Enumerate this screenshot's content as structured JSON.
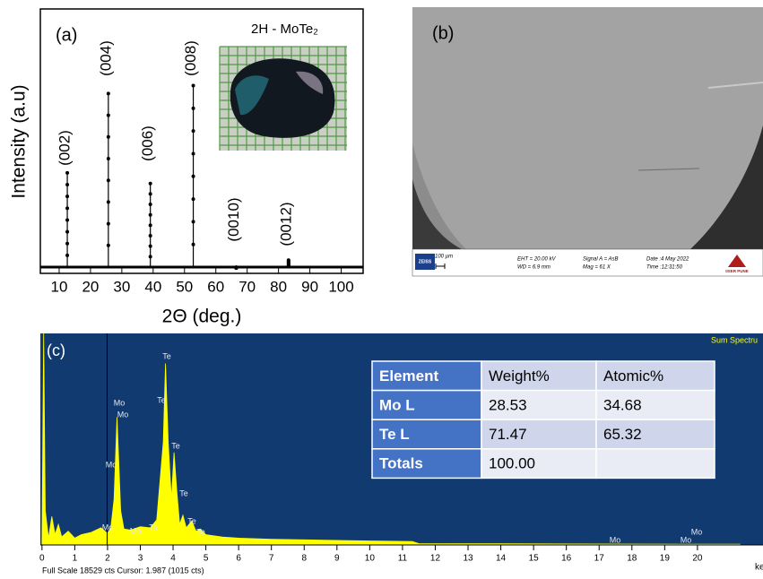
{
  "chart_data": [
    {
      "type": "stem",
      "panel_label": "(a)",
      "title": "2H - MoTe₂",
      "y_label": "Intensity (a.u)",
      "x_label": "2Θ (deg.)",
      "x": [
        12.6,
        25.7,
        39.1,
        52.8,
        66.5,
        83.2
      ],
      "values": [
        38,
        68,
        34,
        71,
        2,
        5
      ],
      "peak_labels": [
        "(002)",
        "(004)",
        "(006)",
        "(008)",
        "(0010)",
        "(0012)"
      ],
      "color": "#000000",
      "xlim": [
        4,
        107
      ],
      "ylim": [
        0,
        100
      ],
      "xticks": [
        10,
        20,
        30,
        40,
        50,
        60,
        70,
        80,
        90,
        100
      ]
    },
    {
      "type": "area",
      "panel_label": "(c)",
      "legend": "Sum Spectru",
      "x_unit": "ke",
      "footer": "Full Scale 18529 cts Cursor: 1.987 (1015 cts)",
      "cursor_x": 1.987,
      "x": [
        0,
        0.05,
        0.1,
        0.2,
        0.3,
        0.4,
        0.5,
        0.6,
        0.8,
        1.0,
        1.2,
        1.5,
        1.8,
        2.0,
        2.1,
        2.2,
        2.29,
        2.4,
        2.5,
        2.7,
        3.0,
        3.3,
        3.5,
        3.7,
        3.77,
        3.85,
        3.95,
        4.03,
        4.12,
        4.2,
        4.3,
        4.4,
        4.57,
        4.7,
        4.83,
        5.0,
        5.5,
        6,
        7,
        8,
        10,
        11.3,
        11.5,
        14,
        20,
        21.3
      ],
      "values": [
        0,
        18529,
        3000,
        600,
        2500,
        900,
        1800,
        700,
        1200,
        600,
        900,
        1100,
        1500,
        1015,
        1500,
        4000,
        11200,
        3000,
        1400,
        1300,
        1600,
        1500,
        2200,
        9000,
        15900,
        9000,
        4000,
        8100,
        4500,
        1800,
        2600,
        1500,
        2100,
        1200,
        1400,
        900,
        700,
        600,
        500,
        450,
        350,
        300,
        120,
        100,
        60,
        60
      ],
      "peak_labels": [
        "Te",
        "Te",
        "Mo",
        "Mo",
        "Te",
        "Mo",
        "Te",
        "Te",
        "Te",
        "Te",
        "Mo",
        "Mo",
        "Mo",
        "Mo",
        "Mo"
      ],
      "color": "#ffff00",
      "background": "#113a70",
      "xlim": [
        -0.05,
        22.0
      ],
      "ylim": [
        0,
        18529
      ],
      "xticks": [
        0,
        1,
        2,
        3,
        4,
        5,
        6,
        7,
        8,
        9,
        10,
        11,
        12,
        13,
        14,
        15,
        16,
        17,
        18,
        19,
        20
      ]
    }
  ],
  "sem": {
    "panel_label": "(b)",
    "brand": "ZEISS",
    "scale": "100 µm",
    "eht": "EHT = 20.00 kV",
    "wd": "WD = 6.9 mm",
    "signal": "Signal A = AsB",
    "mag": "Mag = 61 X",
    "date": "Date :4 May 2022",
    "time": "Time :12:31:50",
    "institute": "IISER PUNE"
  },
  "eds_table": {
    "header": [
      "Element",
      "Weight%",
      "Atomic%"
    ],
    "rows": [
      [
        "Mo L",
        "28.53",
        "34.68"
      ],
      [
        "Te L",
        "71.47",
        "65.32"
      ],
      [
        "Totals",
        "100.00"
      ]
    ]
  }
}
